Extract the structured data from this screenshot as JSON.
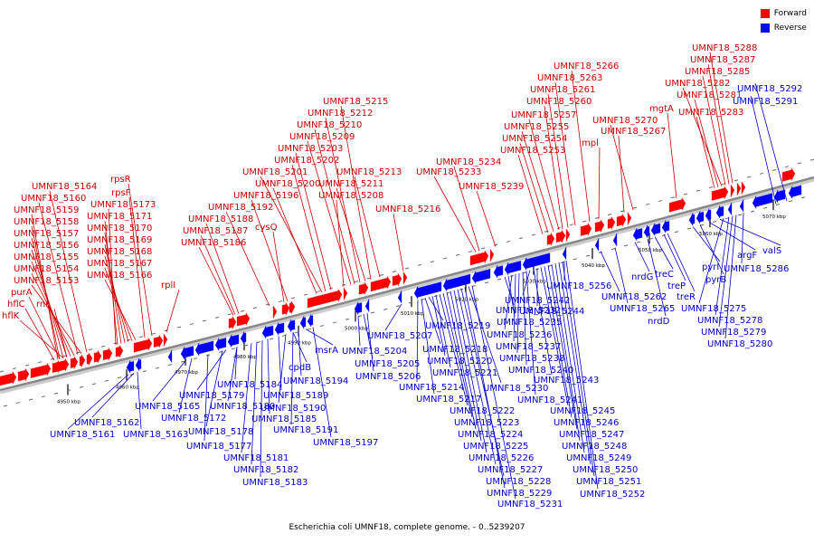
{
  "caption": "Escherichia coli UMNF18, complete genome. - 0..5239207",
  "legend": [
    {
      "label": "Forward",
      "color": "#ff0000"
    },
    {
      "label": "Reverse",
      "color": "#0000ff"
    }
  ],
  "colors": {
    "forward": "#ff0000",
    "reverse": "#0000ff",
    "label_forward": "#cc0000",
    "label_reverse": "#0000cc",
    "backbone": "#888888"
  },
  "ticks": [
    "4950 kbp",
    "4960 kbp",
    "4970 kbp",
    "4980 kbp",
    "4990 kbp",
    "5000 kbp",
    "5010 kbp",
    "5020 kbp",
    "5030 kbp",
    "5040 kbp",
    "5050 kbp",
    "5060 kbp",
    "5070 kbp"
  ],
  "forward_labels": [
    "hflK",
    "hflC",
    "purA",
    "rnr",
    "UMNF18_5153",
    "UMNF18_5154",
    "UMNF18_5155",
    "UMNF18_5156",
    "UMNF18_5157",
    "UMNF18_5158",
    "UMNF18_5159",
    "UMNF18_5160",
    "UMNF18_5164",
    "UMNF18_5166",
    "UMNF18_5167",
    "UMNF18_5168",
    "UMNF18_5169",
    "UMNF18_5170",
    "UMNF18_5171",
    "UMNF18_5173",
    "rpsF",
    "rpsR",
    "rplI",
    "UMNF18_5186",
    "UMNF18_5187",
    "UMNF18_5188",
    "UMNF18_5192",
    "cysQ",
    "UMNF18_5196",
    "UMNF18_5200",
    "UMNF18_5201",
    "UMNF18_5202",
    "UMNF18_5203",
    "UMNF18_5209",
    "UMNF18_5210",
    "UMNF18_5212",
    "UMNF18_5215",
    "UMNF18_5208",
    "UMNF18_5211",
    "UMNF18_5213",
    "UMNF18_5216",
    "UMNF18_5233",
    "UMNF18_5234",
    "UMNF18_5239",
    "UMNF18_5253",
    "UMNF18_5254",
    "UMNF18_5255",
    "UMNF18_5257",
    "UMNF18_5260",
    "UMNF18_5261",
    "UMNF18_5263",
    "UMNF18_5266",
    "mpl",
    "UMNF18_5267",
    "UMNF18_5270",
    "mgtA",
    "UMNF18_5283",
    "UMNF18_5281",
    "UMNF18_5282",
    "UMNF18_5285",
    "UMNF18_5287",
    "UMNF18_5288"
  ],
  "reverse_labels": [
    "UMNF18_5161",
    "UMNF18_5162",
    "UMNF18_5163",
    "UMNF18_5165",
    "UMNF18_5172",
    "UMNF18_5177",
    "UMNF18_5178",
    "UMNF18_5179",
    "UMNF18_5180",
    "UMNF18_5181",
    "UMNF18_5182",
    "UMNF18_5183",
    "UMNF18_5184",
    "UMNF18_5185",
    "UMNF18_5189",
    "UMNF18_5190",
    "UMNF18_5191",
    "cpdB",
    "UMNF18_5194",
    "UMNF18_5197",
    "msrA",
    "UMNF18_5204",
    "UMNF18_5205",
    "UMNF18_5206",
    "UMNF18_5207",
    "UMNF18_5214",
    "UMNF18_5217",
    "UMNF18_5218",
    "UMNF18_5219",
    "UMNF18_5220",
    "UMNF18_5221",
    "UMNF18_5222",
    "UMNF18_5223",
    "UMNF18_5224",
    "UMNF18_5225",
    "UMNF18_5226",
    "UMNF18_5227",
    "UMNF18_5228",
    "UMNF18_5229",
    "UMNF18_5230",
    "UMNF18_5231",
    "UMNF18_5232",
    "UMNF18_5235",
    "UMNF18_5236",
    "UMNF18_5237",
    "UMNF18_5238",
    "UMNF18_5240",
    "UMNF18_5241",
    "UMNF18_5242",
    "UMNF18_5243",
    "UMNF18_5244",
    "UMNF18_5245",
    "UMNF18_5246",
    "UMNF18_5247",
    "UMNF18_5248",
    "UMNF18_5249",
    "UMNF18_5250",
    "UMNF18_5251",
    "UMNF18_5252",
    "UMNF18_5256",
    "UMNF18_5262",
    "UMNF18_5265",
    "nrdG",
    "nrdD",
    "treC",
    "treP",
    "treR",
    "pyrI",
    "pyrB",
    "argF",
    "valS",
    "UMNF18_5275",
    "UMNF18_5278",
    "UMNF18_5279",
    "UMNF18_5280",
    "UMNF18_5286",
    "UMNF18_5291",
    "UMNF18_5292"
  ]
}
